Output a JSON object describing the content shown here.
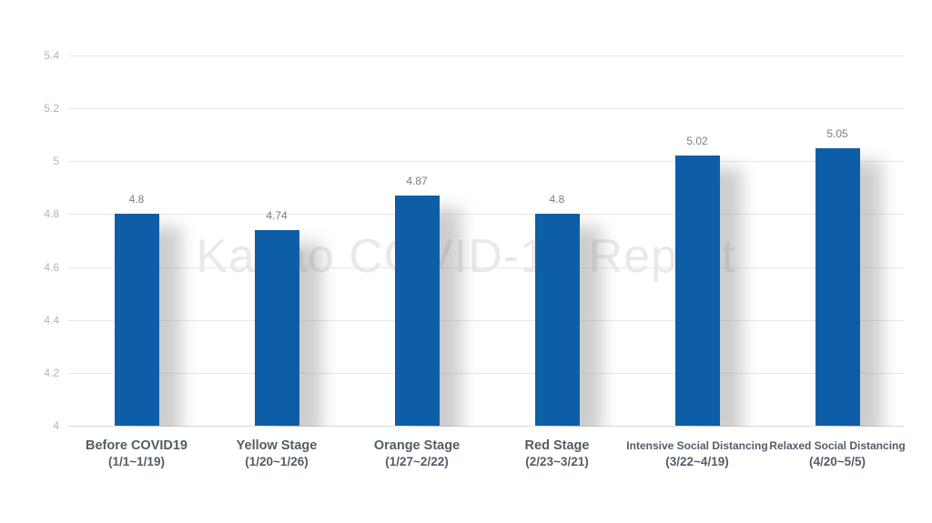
{
  "watermark": "Kakao COVID-19 Report",
  "colors": {
    "bar": "#0d5ea6",
    "axis_label": "#535d68",
    "tick_label": "#b1b4b8",
    "value_label": "#7d7d7d",
    "watermark": "#e9e9e9"
  },
  "chart_data": {
    "type": "bar",
    "title": "",
    "xlabel": "",
    "ylabel": "",
    "grid": true,
    "legend": false,
    "ylim": [
      4,
      5.4
    ],
    "yticks": [
      4,
      4.2,
      4.4,
      4.6,
      4.8,
      5,
      5.2,
      5.4
    ],
    "ytick_labels": [
      "4",
      "4.2",
      "4.4",
      "4.6",
      "4.8",
      "5",
      "5.2",
      "5.4"
    ],
    "categories": [
      {
        "label": "Before COVID19",
        "sublabel": "(1/1~1/19)",
        "small": false
      },
      {
        "label": "Yellow Stage",
        "sublabel": "(1/20~1/26)",
        "small": false
      },
      {
        "label": "Orange Stage",
        "sublabel": "(1/27~2/22)",
        "small": false
      },
      {
        "label": "Red Stage",
        "sublabel": "(2/23~3/21)",
        "small": false
      },
      {
        "label": "Intensive Social Distancing",
        "sublabel": "(3/22~4/19)",
        "small": true
      },
      {
        "label": "Relaxed Social Distancing",
        "sublabel": "(4/20~5/5)",
        "small": true
      }
    ],
    "values": [
      4.8,
      4.74,
      4.87,
      4.8,
      5.02,
      5.05
    ],
    "value_labels": [
      "4.8",
      "4.74",
      "4.87",
      "4.8",
      "5.02",
      "5.05"
    ],
    "bar_color": "#0d5ea6"
  }
}
